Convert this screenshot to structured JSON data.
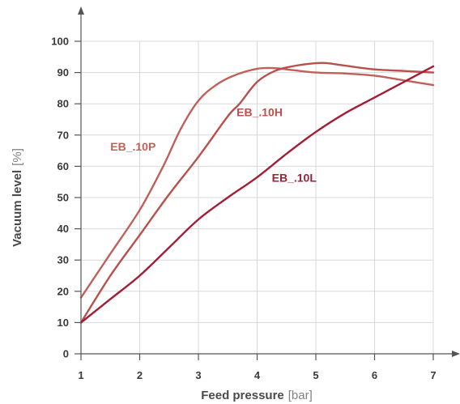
{
  "chart_data": {
    "type": "line",
    "xlabel": "Feed pressure",
    "xlabel_unit": "[bar]",
    "ylabel": "Vacuum level",
    "ylabel_unit": "[%]",
    "xlim": [
      1,
      7
    ],
    "ylim": [
      0,
      100
    ],
    "xticks": [
      "1",
      "2",
      "3",
      "4",
      "5",
      "6",
      "7"
    ],
    "yticks": [
      "0",
      "10",
      "20",
      "30",
      "40",
      "50",
      "60",
      "70",
      "80",
      "90",
      "100"
    ],
    "grid": true,
    "legend": "inline labels",
    "colors": {
      "EB_.10P": "#c0605a",
      "EB_.10H": "#b8504c",
      "EB_.10L": "#a31d35",
      "grid": "#d8d8d8",
      "axis": "#555555"
    },
    "series": [
      {
        "name": "EB_.10P",
        "points": [
          [
            1,
            18
          ],
          [
            1.5,
            32
          ],
          [
            2,
            46
          ],
          [
            2.4,
            60
          ],
          [
            2.7,
            72
          ],
          [
            3,
            81
          ],
          [
            3.3,
            86
          ],
          [
            3.6,
            89
          ],
          [
            4,
            91.2
          ],
          [
            4.3,
            91.4
          ],
          [
            4.6,
            90.8
          ],
          [
            5,
            90
          ],
          [
            5.5,
            89.7
          ],
          [
            6,
            89
          ],
          [
            6.5,
            87.5
          ],
          [
            7,
            86
          ]
        ]
      },
      {
        "name": "EB_.10H",
        "points": [
          [
            1,
            10
          ],
          [
            1.5,
            25
          ],
          [
            2,
            38
          ],
          [
            2.5,
            51
          ],
          [
            3,
            63
          ],
          [
            3.5,
            76
          ],
          [
            3.7,
            80
          ],
          [
            4,
            87
          ],
          [
            4.3,
            90.5
          ],
          [
            4.6,
            92
          ],
          [
            5,
            93
          ],
          [
            5.2,
            93
          ],
          [
            5.5,
            92.2
          ],
          [
            6,
            91
          ],
          [
            6.5,
            90.5
          ],
          [
            7,
            90
          ]
        ]
      },
      {
        "name": "EB_.10L",
        "points": [
          [
            1,
            10
          ],
          [
            1.5,
            17.5
          ],
          [
            2,
            25
          ],
          [
            2.5,
            34
          ],
          [
            3,
            43
          ],
          [
            3.5,
            50
          ],
          [
            4,
            56.5
          ],
          [
            4.5,
            64
          ],
          [
            5,
            71
          ],
          [
            5.5,
            77
          ],
          [
            6,
            82
          ],
          [
            6.5,
            87
          ],
          [
            7,
            92
          ]
        ]
      }
    ],
    "labels": [
      {
        "text": "EB_.10P",
        "series": "EB_.10P",
        "x": 1.5,
        "y": 65
      },
      {
        "text": "EB_.10H",
        "series": "EB_.10H",
        "x": 3.65,
        "y": 76
      },
      {
        "text": "EB_.10L",
        "series": "EB_.10L",
        "x": 4.25,
        "y": 55
      }
    ]
  }
}
